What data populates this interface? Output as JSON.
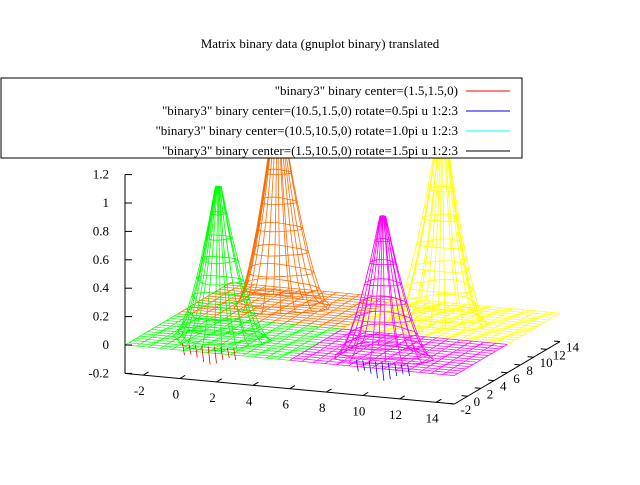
{
  "chart_data": {
    "type": "surface",
    "title": "Matrix binary data (gnuplot binary) translated",
    "xlabel": "",
    "ylabel": "",
    "zlabel": "",
    "xlim": [
      -3,
      15
    ],
    "ylim": [
      -2,
      14
    ],
    "zlim": [
      -0.2,
      1.2
    ],
    "grid": false,
    "legend_position": "top",
    "x_ticks": [
      "-2",
      "0",
      "2",
      "4",
      "6",
      "8",
      "10",
      "12",
      "14"
    ],
    "y_ticks": [
      "-2",
      "0",
      "2",
      "4",
      "6",
      "8",
      "10",
      "12",
      "14"
    ],
    "z_ticks": [
      "-0.2",
      "0",
      "0.2",
      "0.4",
      "0.6",
      "0.8",
      "1",
      "1.2"
    ],
    "series": [
      {
        "name": "\"binary3\" binary center=(1.5,1.5,0)",
        "color": "#ff0000",
        "center": [
          1.5,
          1.5,
          0
        ],
        "rotate": 0,
        "quadrant_colors": [
          "#00ff00",
          "#ff0000"
        ]
      },
      {
        "name": "\"binary3\" binary center=(10.5,1.5,0) rotate=0.5pi u 1:2:3",
        "color": "#0000ff",
        "center": [
          10.5,
          1.5,
          0
        ],
        "rotate": 0.5,
        "quadrant_colors": [
          "#ff00ff",
          "#0000ff"
        ]
      },
      {
        "name": "\"binary3\" binary center=(10.5,10.5,0) rotate=1.0pi u 1:2:3",
        "color": "#00ffff",
        "center": [
          10.5,
          10.5,
          0
        ],
        "rotate": 1.0,
        "quadrant_colors": [
          "#ffff00",
          "#00ffff"
        ]
      },
      {
        "name": "\"binary3\" binary center=(1.5,10.5,0) rotate=1.5pi u 1:2:3",
        "color": "#000000",
        "center": [
          1.5,
          10.5,
          0
        ],
        "rotate": 1.5,
        "quadrant_colors": [
          "#ff6a00",
          "#000000"
        ]
      }
    ],
    "peaks": [
      {
        "color": "#00ff00",
        "x": 1.0,
        "y": 1.0,
        "height": 1.08
      },
      {
        "color": "#ff6a00",
        "x": 1.0,
        "y": 10.0,
        "height": 1.4
      },
      {
        "color": "#ff00ff",
        "x": 10.0,
        "y": 1.0,
        "height": 0.98
      },
      {
        "color": "#ffff00",
        "x": 10.0,
        "y": 10.0,
        "height": 1.38
      }
    ]
  }
}
